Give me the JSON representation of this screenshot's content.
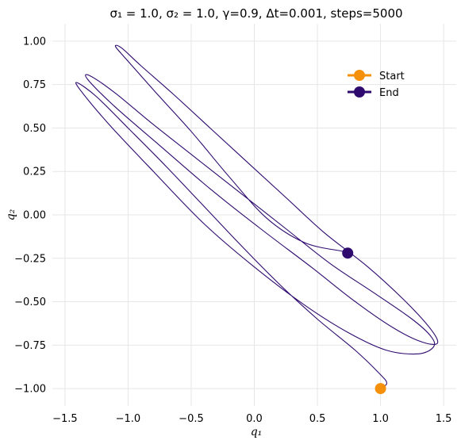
{
  "chart_data": {
    "type": "line",
    "title": "σ₁ = 1.0, σ₂ = 1.0, γ=0.9, Δt=0.001, steps=5000",
    "xlabel": "q₁",
    "ylabel": "q₂",
    "xlim": [
      -1.6,
      1.6
    ],
    "ylim": [
      -1.1,
      1.1
    ],
    "xticks": [
      -1.5,
      -1.0,
      -0.5,
      0.0,
      0.5,
      1.0,
      1.5
    ],
    "xtick_labels": [
      "−1.5",
      "−1.0",
      "−0.5",
      "0.0",
      "0.5",
      "1.0",
      "1.5"
    ],
    "yticks": [
      1.0,
      0.75,
      0.5,
      0.25,
      0.0,
      -0.25,
      -0.5,
      -0.75,
      -1.0
    ],
    "ytick_labels": [
      "1.00",
      "0.75",
      "0.50",
      "0.25",
      "0.00",
      "−0.25",
      "−0.50",
      "−0.75",
      "−1.00"
    ],
    "grid": true,
    "legend_position": "top-right",
    "trajectory": {
      "name": "trajectory",
      "color": "#2e0a6e",
      "x": [
        1.0,
        1.05,
        1.0,
        0.8,
        0.5,
        0.2,
        -0.1,
        -0.4,
        -0.7,
        -1.0,
        -1.25,
        -1.4,
        -1.38,
        -1.15,
        -0.8,
        -0.4,
        0.0,
        0.4,
        0.75,
        1.05,
        1.3,
        1.42,
        1.4,
        1.25,
        0.95,
        0.6,
        0.25,
        -0.1,
        -0.45,
        -0.8,
        -1.1,
        -1.3,
        -1.32,
        -1.1,
        -0.75,
        -0.35,
        0.05,
        0.45,
        0.8,
        1.1,
        1.32,
        1.45,
        1.4,
        1.2,
        0.9,
        0.55,
        0.25,
        -0.05,
        -0.35,
        -0.65,
        -0.9,
        -1.05,
        -1.1,
        -1.02,
        -0.8,
        -0.5,
        -0.2,
        0.1,
        0.4,
        0.7,
        0.74
      ],
      "y": [
        -1.0,
        -0.97,
        -0.92,
        -0.78,
        -0.6,
        -0.4,
        -0.18,
        0.05,
        0.28,
        0.5,
        0.68,
        0.76,
        0.72,
        0.52,
        0.25,
        -0.05,
        -0.3,
        -0.52,
        -0.68,
        -0.78,
        -0.8,
        -0.76,
        -0.7,
        -0.6,
        -0.45,
        -0.28,
        -0.08,
        0.12,
        0.32,
        0.52,
        0.7,
        0.8,
        0.78,
        0.62,
        0.4,
        0.15,
        -0.08,
        -0.3,
        -0.5,
        -0.65,
        -0.73,
        -0.74,
        -0.66,
        -0.5,
        -0.3,
        -0.1,
        0.1,
        0.3,
        0.5,
        0.7,
        0.86,
        0.96,
        0.97,
        0.9,
        0.72,
        0.48,
        0.22,
        -0.02,
        -0.16,
        -0.21,
        -0.22
      ]
    },
    "points": [
      {
        "name": "Start",
        "x": 1.0,
        "y": -1.0,
        "color": "#f5900a"
      },
      {
        "name": "End",
        "x": 0.74,
        "y": -0.22,
        "color": "#2e0a6e"
      }
    ],
    "legend": [
      {
        "label": "Start",
        "color": "#f5900a"
      },
      {
        "label": "End",
        "color": "#2e0a6e"
      }
    ]
  }
}
